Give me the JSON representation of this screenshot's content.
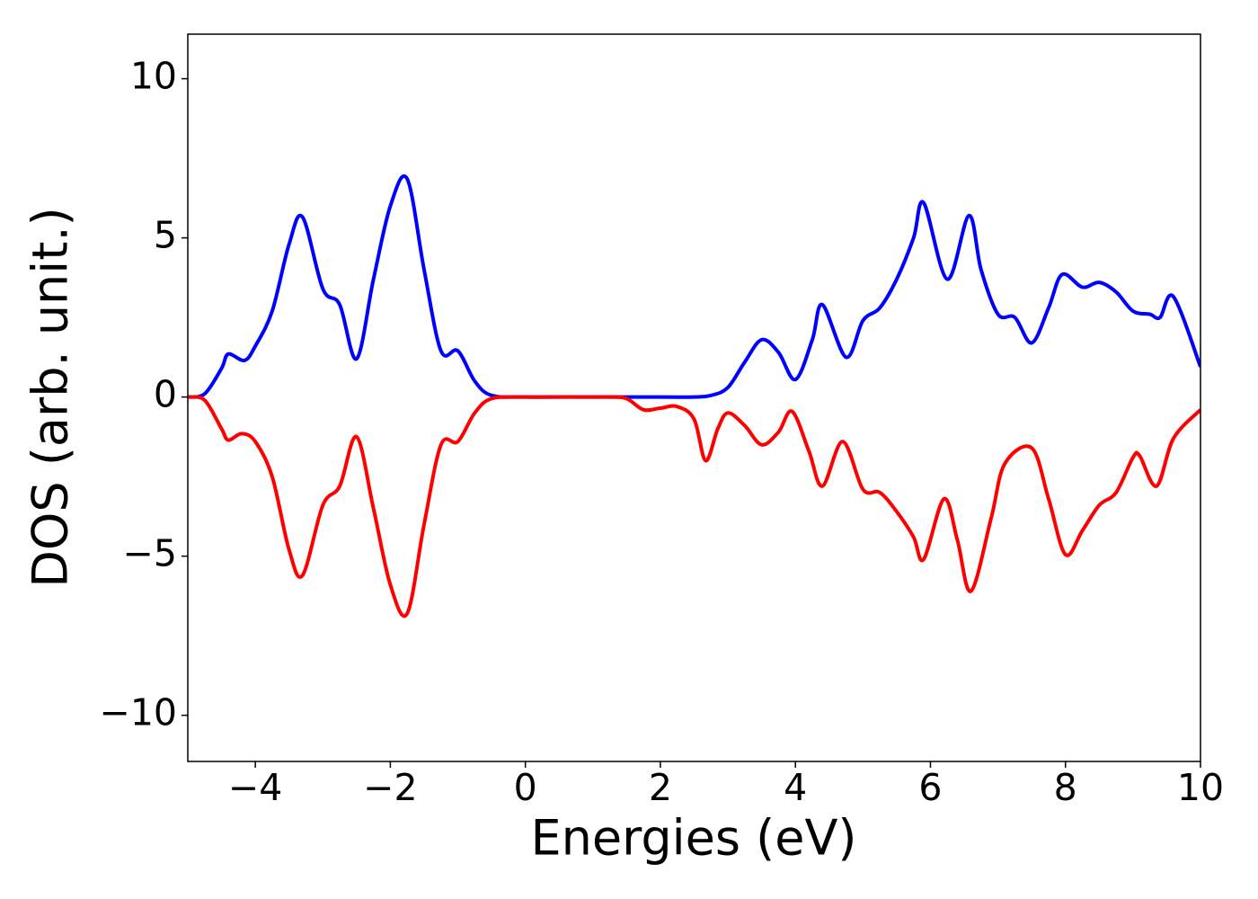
{
  "chart_data": {
    "type": "line",
    "xlabel": "Energies (eV)",
    "ylabel": "DOS (arb. unit.)",
    "xlim": [
      -5,
      10
    ],
    "ylim": [
      -11.45,
      11.4
    ],
    "xticks": [
      {
        "value": -4,
        "label": "−4"
      },
      {
        "value": -2,
        "label": "−2"
      },
      0,
      2,
      4,
      6,
      8,
      10
    ],
    "yticks": [
      {
        "value": -10,
        "label": "−10"
      },
      {
        "value": -5,
        "label": "−5"
      },
      0,
      5,
      10
    ],
    "series": [
      {
        "color": "#0000ff",
        "x": [
          -5,
          -4.75,
          -4.5,
          -4.4,
          -4.16,
          -4.0,
          -3.75,
          -3.5,
          -3.3,
          -3.0,
          -2.75,
          -2.5,
          -2.25,
          -2.0,
          -1.75,
          -1.5,
          -1.25,
          -1.0,
          -0.75,
          -0.5,
          0,
          1,
          2,
          2.5,
          2.75,
          3.0,
          3.25,
          3.5,
          3.75,
          4.0,
          4.25,
          4.4,
          4.75,
          5.0,
          5.25,
          5.5,
          5.75,
          5.9,
          6.25,
          6.57,
          6.75,
          7.0,
          7.25,
          7.5,
          7.75,
          7.95,
          8.25,
          8.5,
          8.75,
          9.0,
          9.25,
          9.4,
          9.6,
          10
        ],
        "values": [
          0,
          0.1,
          0.9,
          1.35,
          1.15,
          1.6,
          2.7,
          4.8,
          5.65,
          3.4,
          2.9,
          1.2,
          3.7,
          6.0,
          6.85,
          4.0,
          1.45,
          1.45,
          0.5,
          0.05,
          0,
          0,
          0,
          0,
          0.05,
          0.3,
          1.1,
          1.8,
          1.4,
          0.55,
          1.8,
          2.9,
          1.25,
          2.4,
          2.8,
          3.7,
          5.0,
          6.1,
          3.7,
          5.7,
          4.0,
          2.6,
          2.5,
          1.7,
          2.8,
          3.85,
          3.45,
          3.6,
          3.3,
          2.7,
          2.6,
          2.5,
          3.15,
          0.95
        ]
      },
      {
        "color": "#ff0000",
        "x": [
          -5,
          -4.75,
          -4.5,
          -4.4,
          -4.2,
          -4.0,
          -3.75,
          -3.5,
          -3.3,
          -3.0,
          -2.75,
          -2.5,
          -2.25,
          -2.0,
          -1.75,
          -1.5,
          -1.25,
          -1.0,
          -0.75,
          -0.5,
          0,
          1,
          1.25,
          1.5,
          1.75,
          2.0,
          2.25,
          2.5,
          2.67,
          2.85,
          3.0,
          3.25,
          3.5,
          3.75,
          3.95,
          4.2,
          4.4,
          4.7,
          5.0,
          5.25,
          5.5,
          5.75,
          5.9,
          6.2,
          6.4,
          6.6,
          6.9,
          7.1,
          7.5,
          7.75,
          8.0,
          8.25,
          8.5,
          8.75,
          9.0,
          9.1,
          9.35,
          9.6,
          10
        ],
        "values": [
          0,
          -0.1,
          -1.0,
          -1.35,
          -1.15,
          -1.4,
          -2.5,
          -4.8,
          -5.6,
          -3.4,
          -2.8,
          -1.25,
          -3.5,
          -5.9,
          -6.8,
          -4.0,
          -1.5,
          -1.4,
          -0.5,
          -0.05,
          0,
          0,
          0,
          -0.05,
          -0.4,
          -0.35,
          -0.3,
          -0.7,
          -2.0,
          -1.0,
          -0.5,
          -0.9,
          -1.5,
          -1.1,
          -0.45,
          -1.7,
          -2.8,
          -1.4,
          -2.9,
          -3.0,
          -3.6,
          -4.4,
          -5.1,
          -3.2,
          -4.5,
          -6.1,
          -3.8,
          -2.1,
          -1.6,
          -3.2,
          -4.95,
          -4.2,
          -3.4,
          -3.0,
          -1.9,
          -1.85,
          -2.8,
          -1.3,
          -0.4
        ]
      }
    ]
  }
}
